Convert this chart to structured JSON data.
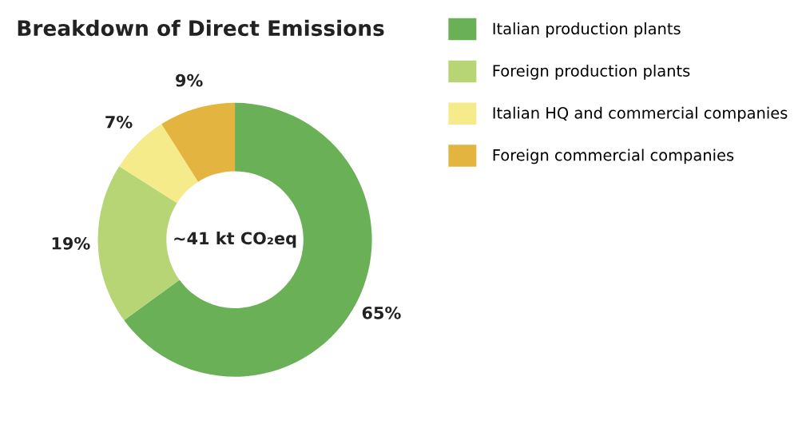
{
  "chart_data": {
    "type": "donut",
    "title": "Breakdown of Direct Emissions",
    "categories": [
      "Italian production plants",
      "Foreign production plants",
      "Italian HQ and commercial companies",
      "Foreign commercial companies"
    ],
    "values": [
      65,
      19,
      7,
      9
    ],
    "colors": [
      "#6ab056",
      "#b8d575",
      "#f5eb8a",
      "#e4b441"
    ],
    "value_labels": [
      "65%",
      "19%",
      "7%",
      "9%"
    ],
    "annotations": [
      "~41 kt CO₂eq"
    ],
    "legend": "top right"
  }
}
